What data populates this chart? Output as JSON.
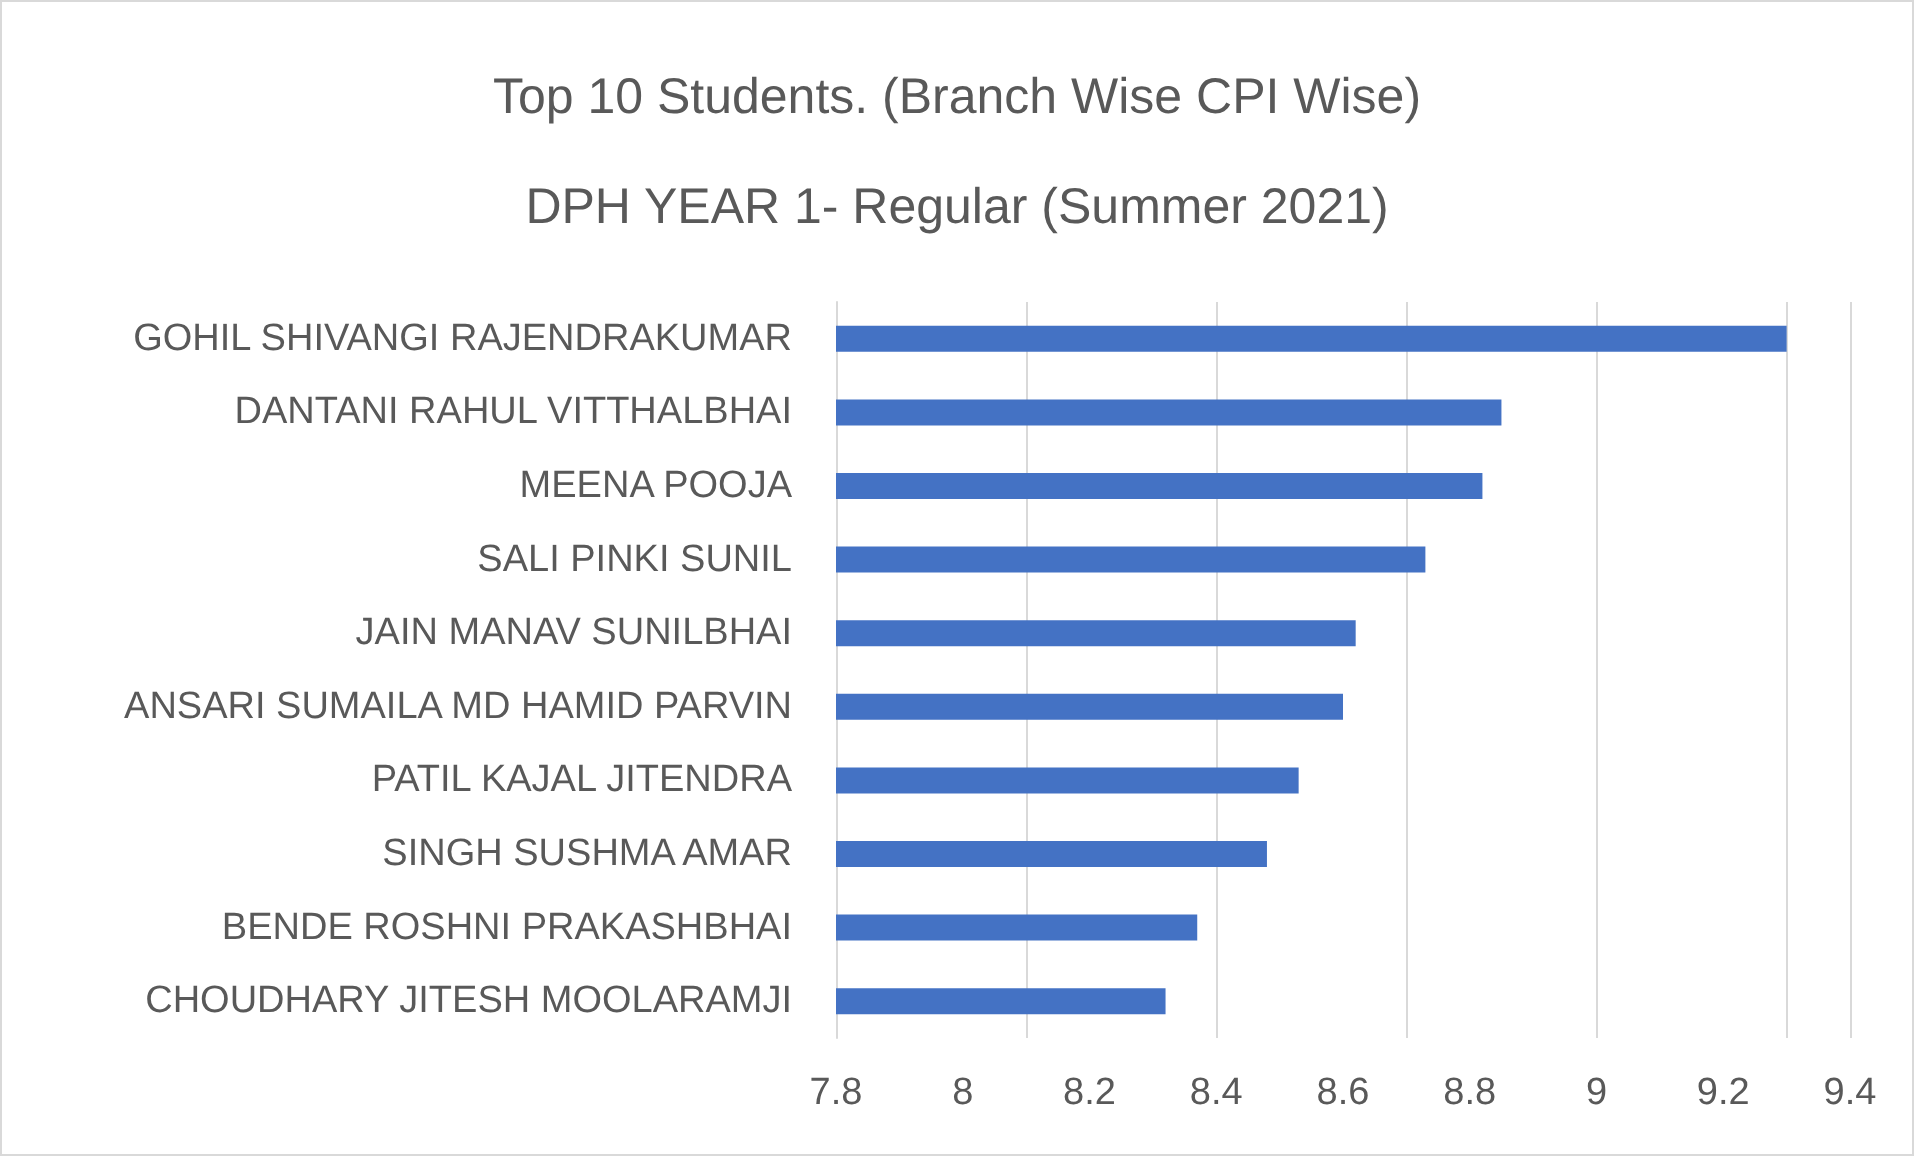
{
  "chart_data": {
    "type": "bar",
    "orientation": "horizontal",
    "title": "Top 10 Students. (Branch Wise CPI Wise)",
    "subtitle": "DPH YEAR 1- Regular (Summer 2021)",
    "categories": [
      "GOHIL SHIVANGI RAJENDRAKUMAR",
      "DANTANI RAHUL VITTHALBHAI",
      "MEENA POOJA",
      "SALI PINKI SUNIL",
      "JAIN MANAV SUNILBHAI",
      "ANSARI SUMAILA MD HAMID PARVIN",
      "PATIL KAJAL JITENDRA",
      "SINGH SUSHMA AMAR",
      "BENDE ROSHNI PRAKASHBHAI",
      "CHOUDHARY JITESH MOOLARAMJI"
    ],
    "values": [
      9.3,
      8.85,
      8.82,
      8.73,
      8.62,
      8.6,
      8.53,
      8.48,
      8.37,
      8.32
    ],
    "color": "#4472c4",
    "xlim": [
      7.8,
      9.4
    ],
    "xticks": [
      7.8,
      8,
      8.2,
      8.4,
      8.6,
      8.8,
      9,
      9.2,
      9.4
    ],
    "grid": "x"
  }
}
